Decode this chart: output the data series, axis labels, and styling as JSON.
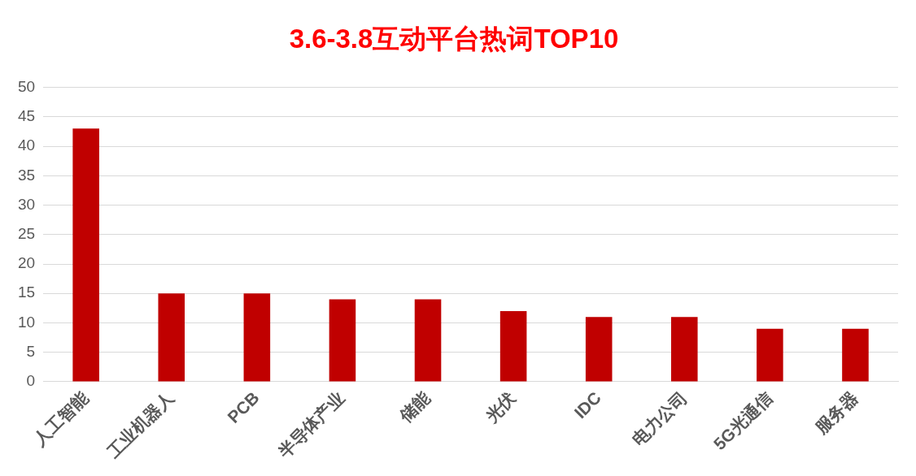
{
  "chart_data": {
    "type": "bar",
    "title": "3.6-3.8互动平台热词TOP10",
    "categories": [
      "人工智能",
      "工业机器人",
      "PCB",
      "半导体产业",
      "储能",
      "光伏",
      "IDC",
      "电力公司",
      "5G光通信",
      "服务器"
    ],
    "values": [
      43,
      15,
      15,
      14,
      14,
      12,
      11,
      11,
      9,
      9
    ],
    "color": "#c00000",
    "ylim": [
      0,
      50
    ],
    "yticks": [
      0,
      5,
      10,
      15,
      20,
      25,
      30,
      35,
      40,
      45,
      50
    ],
    "grid": "y"
  }
}
